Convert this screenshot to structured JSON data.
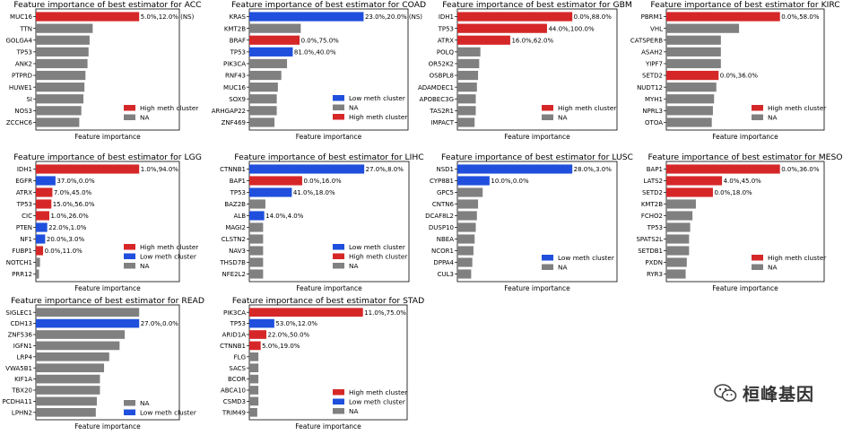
{
  "colors": {
    "high": "#d62728",
    "low": "#1f4fdc",
    "na": "#808080"
  },
  "chart_data": [
    {
      "type": "bar",
      "orientation": "horizontal",
      "title": "Feature importance of best estimator for ACC",
      "xlabel": "Feature importance",
      "features": [
        "MUC16",
        "TTN",
        "GOLGA4",
        "TP53",
        "ANK2",
        "PTPRD",
        "HUWE1",
        "SI",
        "NOS3",
        "ZCCHC6"
      ],
      "values": [
        1.0,
        0.55,
        0.52,
        0.51,
        0.5,
        0.48,
        0.47,
        0.46,
        0.44,
        0.42
      ],
      "classes": [
        "high",
        "na",
        "na",
        "na",
        "na",
        "na",
        "na",
        "na",
        "na",
        "na"
      ],
      "labels": [
        "5.0%,12.0% (NS)",
        "",
        "",
        "",
        "",
        "",
        "",
        "",
        "",
        ""
      ],
      "legend": [
        {
          "key": "high",
          "text": "High meth cluster"
        },
        {
          "key": "na",
          "text": "NA"
        }
      ]
    },
    {
      "type": "bar",
      "orientation": "horizontal",
      "title": "Feature importance of best estimator for COAD",
      "xlabel": "Feature importance",
      "features": [
        "KRAS",
        "KMT2B",
        "BRAF",
        "TP53",
        "PIK3CA",
        "RNF43",
        "MUC16",
        "SOX9",
        "ARHGAP22",
        "ZNF469"
      ],
      "values": [
        1.0,
        0.45,
        0.44,
        0.38,
        0.33,
        0.28,
        0.25,
        0.24,
        0.24,
        0.22
      ],
      "classes": [
        "low",
        "na",
        "high",
        "low",
        "na",
        "na",
        "na",
        "na",
        "na",
        "na"
      ],
      "labels": [
        "23.0%,20.0% (NS)",
        "",
        "0.0%,75.0%",
        "81.0%,40.0%",
        "",
        "",
        "",
        "",
        "",
        ""
      ],
      "legend": [
        {
          "key": "low",
          "text": "Low meth cluster"
        },
        {
          "key": "na",
          "text": "NA"
        },
        {
          "key": "high",
          "text": "High meth cluster"
        }
      ]
    },
    {
      "type": "bar",
      "orientation": "horizontal",
      "title": "Feature importance of best estimator for GBM",
      "xlabel": "Feature importance",
      "features": [
        "IDH1",
        "TP53",
        "ATRX",
        "POLQ",
        "OR52K2",
        "OSBPL8",
        "ADAMDEC1",
        "APOBEC3G",
        "TAS2R1",
        "IMPACT"
      ],
      "values": [
        1.0,
        0.78,
        0.46,
        0.2,
        0.19,
        0.18,
        0.17,
        0.16,
        0.16,
        0.15
      ],
      "classes": [
        "high",
        "high",
        "high",
        "na",
        "na",
        "na",
        "na",
        "na",
        "na",
        "na"
      ],
      "labels": [
        "0.0%,88.0%",
        "44.0%,100.0%",
        "16.0%,62.0%",
        "",
        "",
        "",
        "",
        "",
        "",
        ""
      ],
      "legend": [
        {
          "key": "high",
          "text": "High meth cluster"
        },
        {
          "key": "na",
          "text": "NA"
        }
      ]
    },
    {
      "type": "bar",
      "orientation": "horizontal",
      "title": "Feature importance of best estimator for KIRC",
      "xlabel": "Feature importance",
      "features": [
        "PBRM1",
        "VHL",
        "CATSPERB",
        "ASAH2",
        "YIPF7",
        "SETD2",
        "NUDT12",
        "MYH1",
        "NPRL3",
        "OTOA"
      ],
      "values": [
        1.0,
        0.64,
        0.48,
        0.48,
        0.48,
        0.46,
        0.44,
        0.42,
        0.41,
        0.4
      ],
      "classes": [
        "high",
        "na",
        "na",
        "na",
        "na",
        "high",
        "na",
        "na",
        "na",
        "na"
      ],
      "labels": [
        "0.0%,58.0%",
        "",
        "",
        "",
        "",
        "0.0%,36.0%",
        "",
        "",
        "",
        ""
      ],
      "legend": [
        {
          "key": "high",
          "text": "High meth cluster"
        },
        {
          "key": "na",
          "text": "NA"
        }
      ]
    },
    {
      "type": "bar",
      "orientation": "horizontal",
      "title": "Feature importance of best estimator for LGG",
      "xlabel": "Feature importance",
      "features": [
        "IDH1",
        "EGFR",
        "ATRX",
        "TP53",
        "CIC",
        "PTEN",
        "NF1",
        "FUBP1",
        "NOTCH1",
        "PRR12"
      ],
      "values": [
        1.0,
        0.19,
        0.16,
        0.15,
        0.13,
        0.11,
        0.09,
        0.07,
        0.04,
        0.03
      ],
      "classes": [
        "high",
        "low",
        "high",
        "high",
        "high",
        "low",
        "low",
        "high",
        "na",
        "na"
      ],
      "labels": [
        "1.0%,94.0%",
        "37.0%,0.0%",
        "7.0%,45.0%",
        "15.0%,56.0%",
        "1.0%,26.0%",
        "22.0%,1.0%",
        "20.0%,3.0%",
        "0.0%,11.0%",
        "",
        ""
      ],
      "legend": [
        {
          "key": "high",
          "text": "High meth cluster"
        },
        {
          "key": "low",
          "text": "Low meth cluster"
        },
        {
          "key": "na",
          "text": "NA"
        }
      ]
    },
    {
      "type": "bar",
      "orientation": "horizontal",
      "title": "Feature importance of best estimator for LIHC",
      "xlabel": "Feature importance",
      "features": [
        "CTNNB1",
        "BAP1",
        "TP53",
        "BAZ2B",
        "ALB",
        "MAGI2",
        "CLSTN2",
        "NAV3",
        "THSD7B",
        "NFE2L2"
      ],
      "values": [
        1.0,
        0.46,
        0.37,
        0.14,
        0.13,
        0.12,
        0.12,
        0.12,
        0.12,
        0.12
      ],
      "classes": [
        "low",
        "high",
        "low",
        "na",
        "low",
        "na",
        "na",
        "na",
        "na",
        "na"
      ],
      "labels": [
        "27.0%,8.0%",
        "0.0%,16.0%",
        "41.0%,18.0%",
        "",
        "14.0%,4.0%",
        "",
        "",
        "",
        "",
        ""
      ],
      "legend": [
        {
          "key": "low",
          "text": "Low meth cluster"
        },
        {
          "key": "high",
          "text": "High meth cluster"
        },
        {
          "key": "na",
          "text": "NA"
        }
      ]
    },
    {
      "type": "bar",
      "orientation": "horizontal",
      "title": "Feature importance of best estimator for LUSC",
      "xlabel": "Feature importance",
      "features": [
        "NSD1",
        "CYP8B1",
        "GPC5",
        "CNTN6",
        "DCAF8L2",
        "DUSP10",
        "NBEA",
        "NCOR1",
        "DPPA4",
        "CUL3"
      ],
      "values": [
        1.0,
        0.28,
        0.22,
        0.18,
        0.17,
        0.16,
        0.15,
        0.14,
        0.13,
        0.12
      ],
      "classes": [
        "low",
        "low",
        "na",
        "na",
        "na",
        "na",
        "na",
        "na",
        "na",
        "na"
      ],
      "labels": [
        "28.0%,3.0%",
        "10.0%,0.0%",
        "",
        "",
        "",
        "",
        "",
        "",
        "",
        ""
      ],
      "legend": [
        {
          "key": "low",
          "text": "Low meth cluster"
        },
        {
          "key": "na",
          "text": "NA"
        }
      ]
    },
    {
      "type": "bar",
      "orientation": "horizontal",
      "title": "Feature importance of best estimator for MESO",
      "xlabel": "Feature importance",
      "features": [
        "BAP1",
        "LATS2",
        "SETD2",
        "KMT2B",
        "FCHO2",
        "TP53",
        "SPATS2L",
        "SETDB1",
        "PXDN",
        "RYR3"
      ],
      "values": [
        1.0,
        0.49,
        0.41,
        0.26,
        0.23,
        0.21,
        0.2,
        0.2,
        0.18,
        0.17
      ],
      "classes": [
        "high",
        "high",
        "high",
        "na",
        "na",
        "na",
        "na",
        "na",
        "na",
        "na"
      ],
      "labels": [
        "0.0%,36.0%",
        "4.0%,45.0%",
        "0.0%,18.0%",
        "",
        "",
        "",
        "",
        "",
        "",
        ""
      ],
      "legend": [
        {
          "key": "high",
          "text": "High meth cluster"
        },
        {
          "key": "na",
          "text": "NA"
        }
      ]
    },
    {
      "type": "bar",
      "orientation": "horizontal",
      "title": "Feature importance of best estimator for READ",
      "xlabel": "Feature importance",
      "features": [
        "SIGLEC1",
        "CDH13",
        "ZNF536",
        "IGFN1",
        "LRP4",
        "VWA5B1",
        "KIF1A",
        "TBX20",
        "PCDHA11",
        "LPHN2"
      ],
      "values": [
        1.0,
        1.0,
        0.86,
        0.81,
        0.71,
        0.66,
        0.62,
        0.62,
        0.59,
        0.58
      ],
      "classes": [
        "na",
        "low",
        "na",
        "na",
        "na",
        "na",
        "na",
        "na",
        "na",
        "na"
      ],
      "labels": [
        "",
        "27.0%,0.0%",
        "",
        "",
        "",
        "",
        "",
        "",
        "",
        ""
      ],
      "legend": [
        {
          "key": "na",
          "text": "NA"
        },
        {
          "key": "low",
          "text": "Low meth cluster"
        }
      ]
    },
    {
      "type": "bar",
      "orientation": "horizontal",
      "title": "Feature importance of best estimator for STAD",
      "xlabel": "Feature importance",
      "features": [
        "PIK3CA",
        "TP53",
        "ARID1A",
        "CTNNB1",
        "FLG",
        "SACS",
        "BCOR",
        "ABCA10",
        "CSMD3",
        "TRIM49"
      ],
      "values": [
        1.0,
        0.22,
        0.15,
        0.1,
        0.08,
        0.08,
        0.08,
        0.08,
        0.08,
        0.07
      ],
      "classes": [
        "high",
        "low",
        "high",
        "high",
        "na",
        "na",
        "na",
        "na",
        "na",
        "na"
      ],
      "labels": [
        "11.0%,75.0%",
        "53.0%,12.0%",
        "22.0%,50.0%",
        "5.0%,19.0%",
        "",
        "",
        "",
        "",
        "",
        ""
      ],
      "legend": [
        {
          "key": "high",
          "text": "High meth cluster"
        },
        {
          "key": "low",
          "text": "Low meth cluster"
        },
        {
          "key": "na",
          "text": "NA"
        }
      ]
    }
  ],
  "watermark": {
    "text": "桓峰基因",
    "icon": "wechat-icon"
  }
}
